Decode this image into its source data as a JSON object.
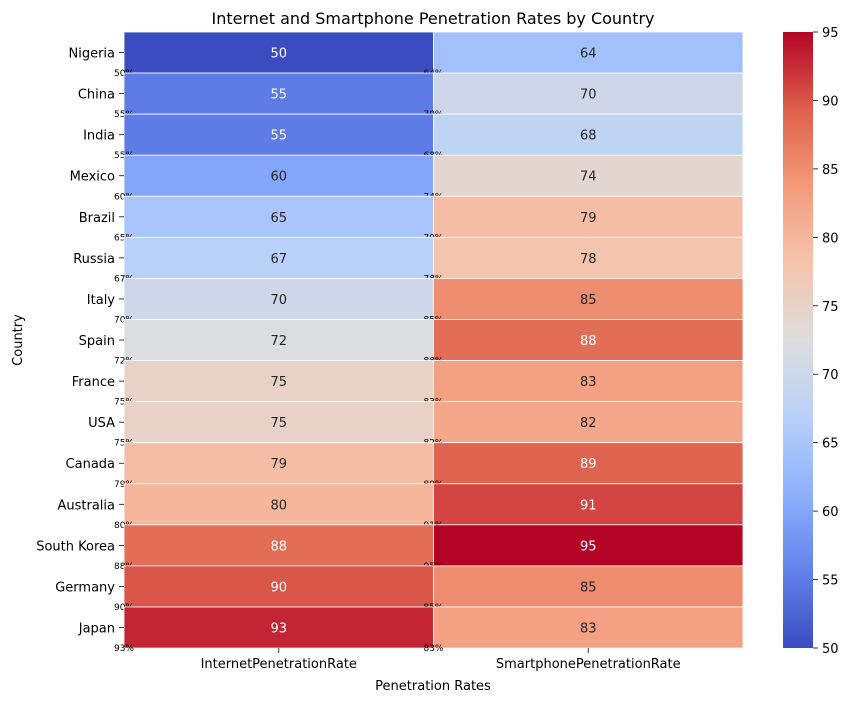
{
  "chart_data": {
    "type": "heatmap",
    "title": "Internet and Smartphone Penetration Rates by Country",
    "xlabel": "Penetration Rates",
    "ylabel": "Country",
    "columns": [
      "InternetPenetrationRate",
      "SmartphonePenetrationRate"
    ],
    "rows": [
      "Nigeria",
      "China",
      "India",
      "Mexico",
      "Brazil",
      "Russia",
      "Italy",
      "Spain",
      "France",
      "USA",
      "Canada",
      "Australia",
      "South Korea",
      "Germany",
      "Japan"
    ],
    "values": [
      [
        50,
        64
      ],
      [
        55,
        70
      ],
      [
        55,
        68
      ],
      [
        60,
        74
      ],
      [
        65,
        79
      ],
      [
        67,
        78
      ],
      [
        70,
        85
      ],
      [
        72,
        88
      ],
      [
        75,
        83
      ],
      [
        75,
        82
      ],
      [
        79,
        89
      ],
      [
        80,
        91
      ],
      [
        88,
        95
      ],
      [
        90,
        85
      ],
      [
        93,
        83
      ]
    ],
    "percent_labels": [
      [
        "50%",
        "64%"
      ],
      [
        "55%",
        "70%"
      ],
      [
        "55%",
        "68%"
      ],
      [
        "60%",
        "74%"
      ],
      [
        "65%",
        "79%"
      ],
      [
        "67%",
        "78%"
      ],
      [
        "70%",
        "85%"
      ],
      [
        "72%",
        "88%"
      ],
      [
        "75%",
        "83%"
      ],
      [
        "75%",
        "82%"
      ],
      [
        "79%",
        "89%"
      ],
      [
        "80%",
        "91%"
      ],
      [
        "88%",
        "95%"
      ],
      [
        "90%",
        "85%"
      ],
      [
        "93%",
        "83%"
      ]
    ],
    "colorscale": "coolwarm",
    "color_range": [
      50,
      95
    ],
    "colorbar_ticks": [
      "50",
      "55",
      "60",
      "65",
      "70",
      "75",
      "80",
      "85",
      "90",
      "95"
    ]
  }
}
